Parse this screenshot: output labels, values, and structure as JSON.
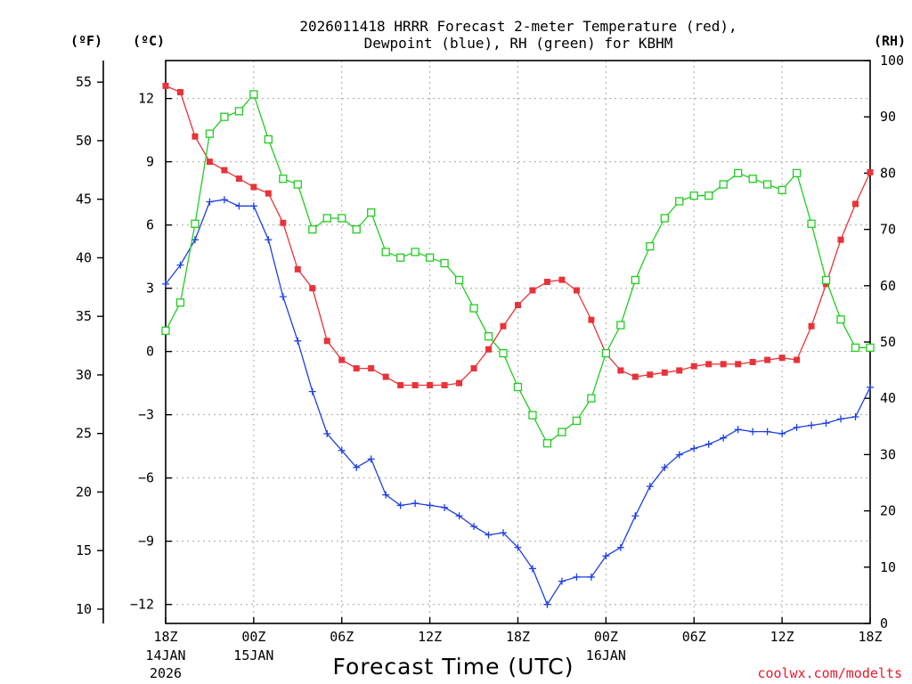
{
  "chart_data": {
    "type": "line",
    "title_line1": "2026011418 HRRR Forecast 2-meter Temperature (red),",
    "title_line2": "Dewpoint (blue), RH (green) for KBHM",
    "xlabel": "Forecast Time (UTC)",
    "credit": "coolwx.com/modelts",
    "units": {
      "f": "(ºF)",
      "c": "(ºC)",
      "rh": "(RH)"
    },
    "x_hours": [
      0,
      1,
      2,
      3,
      4,
      5,
      6,
      7,
      8,
      9,
      10,
      11,
      12,
      13,
      14,
      15,
      16,
      17,
      18,
      19,
      20,
      21,
      22,
      23,
      24,
      25,
      26,
      27,
      28,
      29,
      30,
      31,
      32,
      33,
      34,
      35,
      36,
      37,
      38,
      39,
      40,
      41,
      42,
      43,
      44,
      45,
      46,
      47,
      48
    ],
    "xlim": [
      0,
      48
    ],
    "x_ticks": [
      {
        "hour": 0,
        "label": "18Z",
        "line2": "14JAN",
        "line3": "2026"
      },
      {
        "hour": 6,
        "label": "00Z",
        "line2": "15JAN",
        "line3": ""
      },
      {
        "hour": 12,
        "label": "06Z",
        "line2": "",
        "line3": ""
      },
      {
        "hour": 18,
        "label": "12Z",
        "line2": "",
        "line3": ""
      },
      {
        "hour": 24,
        "label": "18Z",
        "line2": "",
        "line3": ""
      },
      {
        "hour": 30,
        "label": "00Z",
        "line2": "16JAN",
        "line3": ""
      },
      {
        "hour": 36,
        "label": "06Z",
        "line2": "",
        "line3": ""
      },
      {
        "hour": 42,
        "label": "12Z",
        "line2": "",
        "line3": ""
      },
      {
        "hour": 48,
        "label": "18Z",
        "line2": "",
        "line3": ""
      }
    ],
    "ylim_c": [
      -12.9,
      13.8
    ],
    "yticks_c": [
      12,
      9,
      6,
      3,
      0,
      -3,
      -6,
      -9,
      -12
    ],
    "yticks_c_labels": [
      "12",
      "9",
      "6",
      "3",
      "0",
      "−3",
      "−6",
      "−9",
      "−12"
    ],
    "yticks_f": [
      55,
      50,
      45,
      40,
      35,
      30,
      25,
      20,
      15,
      10
    ],
    "yticks_f_labels": [
      "55",
      "50",
      "45",
      "40",
      "35",
      "30",
      "25",
      "20",
      "15",
      "10"
    ],
    "ylim_rh": [
      0,
      100
    ],
    "yticks_rh": [
      100,
      90,
      80,
      70,
      60,
      50,
      40,
      30,
      20,
      10,
      0
    ],
    "yticks_rh_labels": [
      "100",
      "90",
      "80",
      "70",
      "60",
      "50",
      "40",
      "30",
      "20",
      "10",
      "0"
    ],
    "series": [
      {
        "name": "2-meter Temperature",
        "unit": "C",
        "color": "#e8333a",
        "marker": "filled-square",
        "values": [
          12.6,
          12.3,
          10.2,
          9.0,
          8.6,
          8.2,
          7.8,
          7.5,
          6.1,
          3.9,
          3.0,
          0.5,
          -0.4,
          -0.8,
          -0.8,
          -1.2,
          -1.6,
          -1.6,
          -1.6,
          -1.6,
          -1.5,
          -0.8,
          0.1,
          1.2,
          2.2,
          2.9,
          3.3,
          3.4,
          2.9,
          1.5,
          -0.1,
          -0.9,
          -1.2,
          -1.1,
          -1.0,
          -0.9,
          -0.7,
          -0.6,
          -0.6,
          -0.6,
          -0.5,
          -0.4,
          -0.3,
          -0.4,
          1.2,
          3.2,
          5.3,
          7.0,
          8.5
        ]
      },
      {
        "name": "Dewpoint",
        "unit": "C",
        "color": "#1f3fe0",
        "marker": "plus",
        "values": [
          3.2,
          4.1,
          5.3,
          7.1,
          7.2,
          6.9,
          6.9,
          5.3,
          2.6,
          0.5,
          -1.9,
          -3.9,
          -4.7,
          -5.5,
          -5.1,
          -6.8,
          -7.3,
          -7.2,
          -7.3,
          -7.4,
          -7.8,
          -8.3,
          -8.7,
          -8.6,
          -9.3,
          -10.3,
          -12.0,
          -10.9,
          -10.7,
          -10.7,
          -9.7,
          -9.3,
          -7.8,
          -6.4,
          -5.5,
          -4.9,
          -4.6,
          -4.4,
          -4.1,
          -3.7,
          -3.8,
          -3.8,
          -3.9,
          -3.6,
          -3.5,
          -3.4,
          -3.2,
          -3.1,
          -1.7
        ]
      },
      {
        "name": "RH",
        "unit": "%",
        "color": "#22cc22",
        "marker": "open-square",
        "values": [
          52,
          57,
          71,
          87,
          90,
          91,
          94,
          86,
          79,
          78,
          70,
          72,
          72,
          70,
          73,
          66,
          65,
          66,
          65,
          64,
          61,
          56,
          51,
          48,
          42,
          37,
          32,
          34,
          36,
          40,
          48,
          53,
          61,
          67,
          72,
          75,
          76,
          76,
          78,
          80,
          79,
          78,
          77,
          80,
          71,
          61,
          54,
          49,
          49
        ]
      }
    ]
  }
}
